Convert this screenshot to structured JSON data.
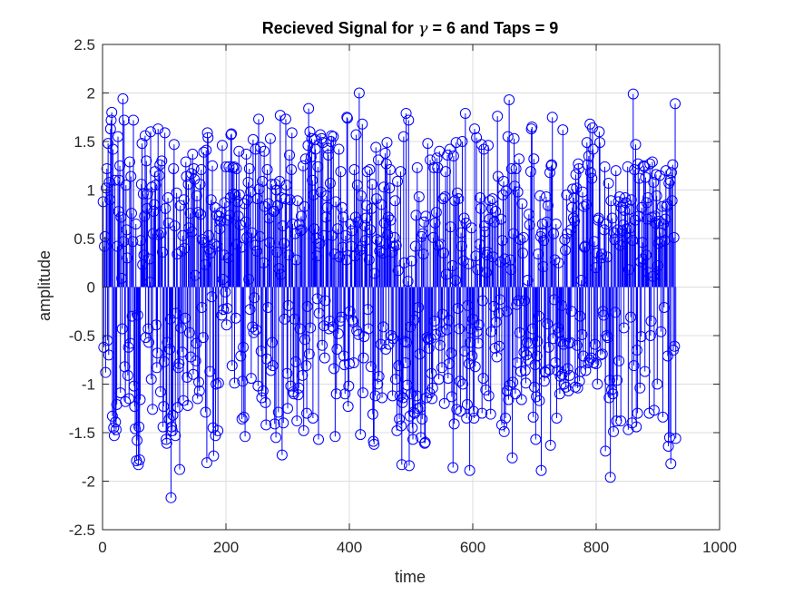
{
  "chart_data": {
    "type": "stem",
    "title_parts": {
      "before": "Recieved Signal for ",
      "symbol": "γ",
      "after": " = 6 and Taps = 9"
    },
    "xlabel": "time",
    "ylabel": "amplitude",
    "xlim": [
      0,
      1000
    ],
    "ylim": [
      -2.5,
      2.5
    ],
    "xticks": [
      0,
      200,
      400,
      600,
      800,
      1000
    ],
    "xtick_labels": [
      "0",
      "200",
      "400",
      "600",
      "800",
      "1000"
    ],
    "yticks": [
      2.5,
      2,
      1.5,
      1,
      0.5,
      0,
      -0.5,
      -1,
      -1.5,
      -2,
      -2.5
    ],
    "ytick_labels": [
      "2.5",
      "2",
      "1.5",
      "1",
      "0.5",
      "0",
      "-0.5",
      "-1",
      "-1.5",
      "-2",
      "-2.5"
    ],
    "grid": true,
    "series": [
      {
        "marker": "circle-open",
        "color": "#0000ff",
        "n_points": 1000,
        "x_start": 1,
        "x_step": 1,
        "y_range": [
          -2.17,
          2.0
        ],
        "y": [
          0.88,
          -0.62,
          0.42,
          0.52,
          -0.88,
          1.02,
          1.22,
          -0.55,
          1.48,
          -0.7,
          1.08,
          0.9,
          1.63,
          1.72,
          1.8,
          -1.33,
          1.42,
          -1.45,
          -1.53,
          1.1,
          -1.39,
          -1.47,
          -1.21,
          0.42,
          1.55,
          0.78,
          1.1,
          1.25,
          -1.09,
          0.72,
          0.09,
          -0.43,
          1.94,
          0.47,
          1.72,
          -0.82,
          -1.18,
          1.05,
          0.59,
          0.3,
          -0.91,
          -0.62,
          -1.15,
          1.29,
          -0.58,
          1.14,
          0.76,
          -0.3,
          0.47,
          1.72,
          -1.02,
          -1.23,
          -1.46,
          0.65,
          -1.79,
          -1.58,
          -0.29,
          -1.83,
          -1.44,
          -1.78,
          -1.16,
          0.48,
          1.06,
          1.48,
          0.23,
          0.96,
          0.33,
          0.73,
          1.56,
          -0.52,
          1.3,
          0.81,
          0.96,
          -0.43,
          -0.57,
          0.29,
          0.05,
          1.6,
          -0.95,
          1.03,
          -1.26,
          0.55,
          0.78,
          0.85,
          1.19,
          1.05,
          -0.39,
          -0.83,
          -0.68,
          1.63,
          0.54,
          1.15,
          1.26,
          -1.08,
          0.56,
          1.3,
          0.36,
          -1.44,
          -1.23,
          -0.77,
          1.59,
          0.81,
          -1.57,
          -1.61,
          -0.57,
          0.92,
          0.66,
          -1.36,
          -0.64,
          -0.33,
          -2.17,
          -1.44,
          -1.48,
          -1.32,
          1.22,
          1.47,
          0.63,
          -1.53,
          -0.27,
          0.97,
          0.34,
          -1.24,
          -0.83,
          -0.79,
          -1.88,
          0.84,
          -0.42,
          0.37,
          -0.67,
          0.53,
          -1.17,
          0.9,
          0.4,
          -0.32,
          1.29,
          1.14,
          -0.93,
          -1.22,
          1.06,
          0.61,
          -0.47,
          0.76,
          -0.72,
          1.17,
          0.57,
          1.37,
          -0.9,
          1.22,
          1.11,
          0.12,
          -0.76,
          -0.58,
          0.94,
          -1.15,
          0.77,
          -0.98,
          -1.07,
          1.06,
          0.75,
          1.21,
          -0.21,
          0.49,
          -0.52,
          1.39,
          0.46,
          0.23,
          -1.29,
          1.41,
          -1.81,
          1.59,
          1.54,
          0.53,
          0.39,
          -0.87,
          0.35,
          0.9,
          -0.1,
          1.25,
          -1.45,
          -1.74,
          0.44,
          0.82,
          -1.53,
          -1.0,
          0.74,
          0.42,
          -1.48,
          -0.99,
          0.73,
          0.6,
          0.68,
          0.77,
          -0.29,
          1.46,
          0.08,
          -0.23,
          0.33,
          0.87,
          -0.05,
          1.24,
          -0.39,
          -0.22,
          0.69,
          0.3,
          1.24,
          0.74,
          0.92,
          1.57,
          1.58,
          -0.81,
          1.23,
          0.96,
          1.24,
          -0.99,
          0.95,
          -0.32,
          1.22,
          0.44,
          0.88,
          0.73,
          1.4,
          0.95,
          0.64,
          -0.71,
          0.41,
          -1.36,
          -0.97,
          -0.62,
          -1.34,
          0.86,
          -1.54,
          0.67,
          1.37,
          0.51,
          0.9,
          1.08,
          0.08,
          1.22,
          -0.23,
          0.98,
          -0.94,
          0.56,
          -0.41,
          1.52,
          -0.47,
          -0.11,
          0.43,
          1.42,
          -0.44,
          0.37,
          0.91,
          -1.02,
          1.73,
          1.01,
          0.52,
          1.44,
          -0.66,
          -1.14,
          1.09,
          -1.07,
          0.25,
          1.4,
          0.83,
          -1.19,
          -1.42,
          -0.74,
          1.21,
          -0.21,
          0.86,
          0.71,
          0.46,
          1.53,
          -0.86,
          1.06,
          -0.57,
          -0.81,
          0.78,
          0.78,
          -1.41,
          1.06,
          -1.55,
          1.0,
          0.36,
          0.84,
          -1.29,
          0.19,
          1.09,
          1.77,
          0.13,
          0.92,
          -1.73,
          0.63,
          -1.4,
          0.45,
          -0.33,
          0.91,
          1.73,
          1.05,
          -0.89,
          -1.25,
          -0.19,
          0.33,
          1.36,
          0.9,
          -1.02,
          1.21,
          1.59,
          0.65,
          -1.08,
          -1.1,
          -0.33,
          0.55,
          -0.77,
          0.28,
          -1.38,
          0.89,
          -1.11,
          -1.04,
          0.65,
          -0.43,
          0.58,
          0.73,
          0.59,
          -0.91,
          1.25,
          -1.48,
          0.83,
          -0.54,
          1.32,
          -0.81,
          -1.3,
          -0.2,
          1.46,
          1.84,
          -0.69,
          1.6,
          -0.42,
          1.34,
          1.53,
          1.1,
          -1.35,
          0.95,
          0.6,
          1.52,
          1.42,
          0.5,
          0.32,
          -0.12,
          1.24,
          -1.57,
          -0.27,
          0.45,
          1.57,
          0.98,
          1.53,
          -0.6,
          1.49,
          0.53,
          -0.4,
          -0.73,
          -0.14,
          0.72,
          0.94,
          0.82,
          1.43,
          1.36,
          -0.43,
          -0.35,
          1.07,
          1.5,
          1.56,
          0.53,
          -0.41,
          1.55,
          -0.84,
          0.34,
          -1.54,
          0.88,
          -1.1,
          -0.64,
          0.6,
          -0.48,
          1.42,
          0.31,
          -0.35,
          1.19,
          -0.31,
          0.82,
          0.41,
          0.72,
          -0.71,
          -0.8,
          -1.1,
          0.53,
          0.28,
          1.75,
          1.74,
          -1.23,
          -1.02,
          -0.79,
          -0.25,
          0.65,
          0.42,
          0.58,
          -0.34,
          -0.36,
          -0.78,
          1.21,
          0.32,
          0.72,
          1.57,
          -0.45,
          1.05,
          0.67,
          -0.49,
          2.0,
          0.38,
          -1.52,
          0.94,
          0.42,
          1.68,
          -1.09,
          -0.73,
          -0.51,
          0.63,
          0.48,
          0.71,
          0.84,
          1.19,
          -0.23,
          -0.43,
          0.28,
          1.21,
          0.59,
          -0.82,
          0.81,
          1.06,
          -1.31,
          -1.59,
          -1.62,
          0.14,
          -1.12,
          1.44,
          0.91,
          0.49,
          -1.0,
          1.31,
          -0.92,
          0.37,
          0.47,
          -0.59,
          0.85,
          -1.14,
          0.35,
          -0.41,
          1.03,
          0.66,
          1.38,
          -0.64,
          1.27,
          1.49,
          0.54,
          0.72,
          -0.59,
          1.02,
          1.21,
          0.69,
          -0.5,
          0.36,
          -1.12,
          -0.53,
          0.42,
          0.51,
          0.89,
          -0.95,
          0.43,
          -1.48,
          1.09,
          0.17,
          -0.81,
          -1.36,
          -1.12,
          1.19,
          -1.43,
          -1.83,
          -1.19,
          -1.14,
          1.55,
          0.25,
          -0.56,
          -0.78,
          1.79,
          -0.57,
          -1.01,
          0.06,
          1.72,
          -1.84,
          -1.33,
          -0.41,
          -1.1,
          0.27,
          -1.45,
          -1.57,
          -1.29,
          -0.34,
          -1.3,
          0.42,
          0.74,
          -1.12,
          1.23,
          -1.25,
          -0.21,
          0.93,
          -0.69,
          -1.24,
          -1.55,
          0.52,
          -1.36,
          0.55,
          0.34,
          0.67,
          -1.61,
          -1.6,
          0.73,
          -1.14,
          -0.52,
          1.48,
          -0.54,
          -0.63,
          -1.09,
          1.31,
          -0.53,
          -0.89,
          -1.15,
          -1.04,
          0.51,
          1.23,
          -0.35,
          0.66,
          -0.49,
          0.77,
          1.33,
          1.23,
          0.43,
          -0.95,
          1.4,
          -0.6,
          0.44,
          -0.46,
          -0.83,
          -0.28,
          0.91,
          0.35,
          -1.2,
          0.93,
          1.19,
          0.13,
          -0.44,
          1.36,
          -0.94,
          -0.34,
          -0.79,
          1.42,
          0.62,
          -0.68,
          -1.13,
          0.22,
          -1.86,
          1.35,
          -1.41,
          0.89,
          0.07,
          1.49,
          -1.26,
          0.97,
          -0.22,
          0.91,
          -0.43,
          -0.97,
          -1.28,
          0.56,
          0.42,
          1.5,
          -1.0,
          0.27,
          0.71,
          -0.66,
          1.79,
          0.66,
          -1.35,
          -1.21,
          -0.19,
          0.24,
          -0.79,
          -1.89,
          -0.57,
          -0.43,
          0.61,
          -0.71,
          -0.33,
          -1.28,
          -1.35,
          1.63,
          -0.82,
          0.32,
          1.54,
          -0.46,
          0.18,
          -0.58,
          -0.39,
          0.44,
          0.92,
          0.81,
          1.47,
          -1.3,
          -0.14,
          -0.94,
          1.42,
          0.63,
          0.57,
          -1.06,
          0.15,
          0.33,
          0.36,
          1.46,
          -1.12,
          0.7,
          0.89,
          -1.31,
          -0.46,
          0.81,
          0.91,
          0.31,
          -0.2,
          0.67,
          -0.63,
          0.78,
          -0.36,
          -0.72,
          1.76,
          1.14,
          -0.27,
          -0.61,
          -0.13,
          0.26,
          0.7,
          -1.42,
          0.48,
          0.95,
          1.09,
          -1.49,
          0.29,
          -1.35,
          0.99,
          -0.25,
          -1.07,
          1.55,
          -1.16,
          1.93,
          -1.01,
          0.28,
          0.18,
          1.22,
          -1.76,
          -0.98,
          0.55,
          1.53,
          1.04,
          -1.1,
          1.22,
          -0.18,
          -0.78,
          0.98,
          -0.14,
          1.32,
          -0.47,
          0.49,
          -0.87,
          -1.16,
          0.86,
          0.35,
          0.51,
          -0.67,
          -0.14,
          -0.86,
          -0.99,
          -0.7,
          -0.57,
          0.07,
          -0.75,
          0.75,
          0.64,
          -0.58,
          1.19,
          1.63,
          1.65,
          -0.43,
          -1.34,
          1.32,
          -1.03,
          -0.8,
          -1.57,
          -1.13,
          -0.71,
          -0.56,
          0.34,
          -0.3,
          -1.17,
          0.94,
          0.52,
          -1.89,
          0.56,
          0.65,
          0.21,
          0.48,
          -0.97,
          -0.87,
          -0.88,
          0.93,
          0.67,
          -0.38,
          0.84,
          -0.62,
          -0.85,
          1.18,
          -1.63,
          1.25,
          1.26,
          1.75,
          -0.53,
          0.55,
          -0.13,
          0.28,
          -0.78,
          0.65,
          -1.35,
          -0.86,
          -0.42,
          0.25,
          -0.47,
          -1.1,
          -0.92,
          -0.56,
          -0.19,
          -0.9,
          1.62,
          -0.59,
          -1.0,
          0.49,
          0.38,
          -1.03,
          0.95,
          0.55,
          -0.84,
          -1.07,
          -0.58,
          -0.91,
          -0.57,
          0.59,
          -0.25,
          0.82,
          1.01,
          0.71,
          0.92,
          0.68,
          -1.03,
          1.16,
          1.02,
          -0.6,
          -1.04,
          1.27,
          1.22,
          -0.97,
          -0.3,
          -0.87,
          0.07,
          -0.49,
          0.98,
          -0.71,
          0.83,
          0.41,
          0.42,
          -0.86,
          0.85,
          1.49,
          1.26,
          -0.78,
          1.35,
          -0.75,
          1.68,
          1.18,
          -0.73,
          1.12,
          1.64,
          1.42,
          -0.78,
          0.47,
          -0.59,
          0.2,
          -0.79,
          0.35,
          -1.0,
          0.69,
          0.71,
          1.6,
          1.49,
          -0.7,
          0.3,
          0.34,
          -0.69,
          -0.25,
          -0.29,
          0.59,
          1.24,
          -1.69,
          0.65,
          -0.5,
          0.31,
          -0.52,
          1.07,
          -1.14,
          -0.96,
          -1.96,
          0.89,
          -1.06,
          0.71,
          -1.1,
          -1.49,
          0.56,
          0.49,
          -0.26,
          1.2,
          -1.38,
          -0.96,
          0.59,
          0.88,
          -0.76,
          0.93,
          0.43,
          -1.38,
          0.82,
          0.58,
          0.47,
          0.64,
          -0.42,
          0.79,
          0.92,
          0.87,
          0.6,
          0.51,
          1.24,
          -1.47,
          0.18,
          0.8,
          0.61,
          -0.31,
          0.9,
          -1.4,
          0.48,
          1.99,
          -0.81,
          1.21,
          0.69,
          1.47,
          -1.44,
          -0.65,
          -1.3,
          1.27,
          0.73,
          1.12,
          -1.04,
          0.26,
          -0.51,
          0.82,
          0.46,
          0.29,
          1.25,
          1.24,
          -0.87,
          1.13,
          0.33,
          0.87,
          0.7,
          0.92,
          0.15,
          -1.3,
          1.27,
          -0.5,
          -0.35,
          0.72,
          1.29,
          0.11,
          1.08,
          -1.27,
          0.73,
          0.66,
          1.16,
          0.94,
          -1.0,
          0.22,
          0.45,
          0.68,
          1.15,
          0.56,
          -0.46,
          0.47,
          0.83,
          -1.34,
          0.65,
          -0.21,
          0.48,
          0.7,
          1.2,
          0.83,
          0.85,
          -0.71,
          -1.64,
          1.07,
          -1.55,
          1.1,
          -1.82,
          1.18,
          0.89,
          1.26,
          -0.65,
          0.51,
          -0.61,
          1.89,
          -1.56
        ]
      }
    ]
  }
}
